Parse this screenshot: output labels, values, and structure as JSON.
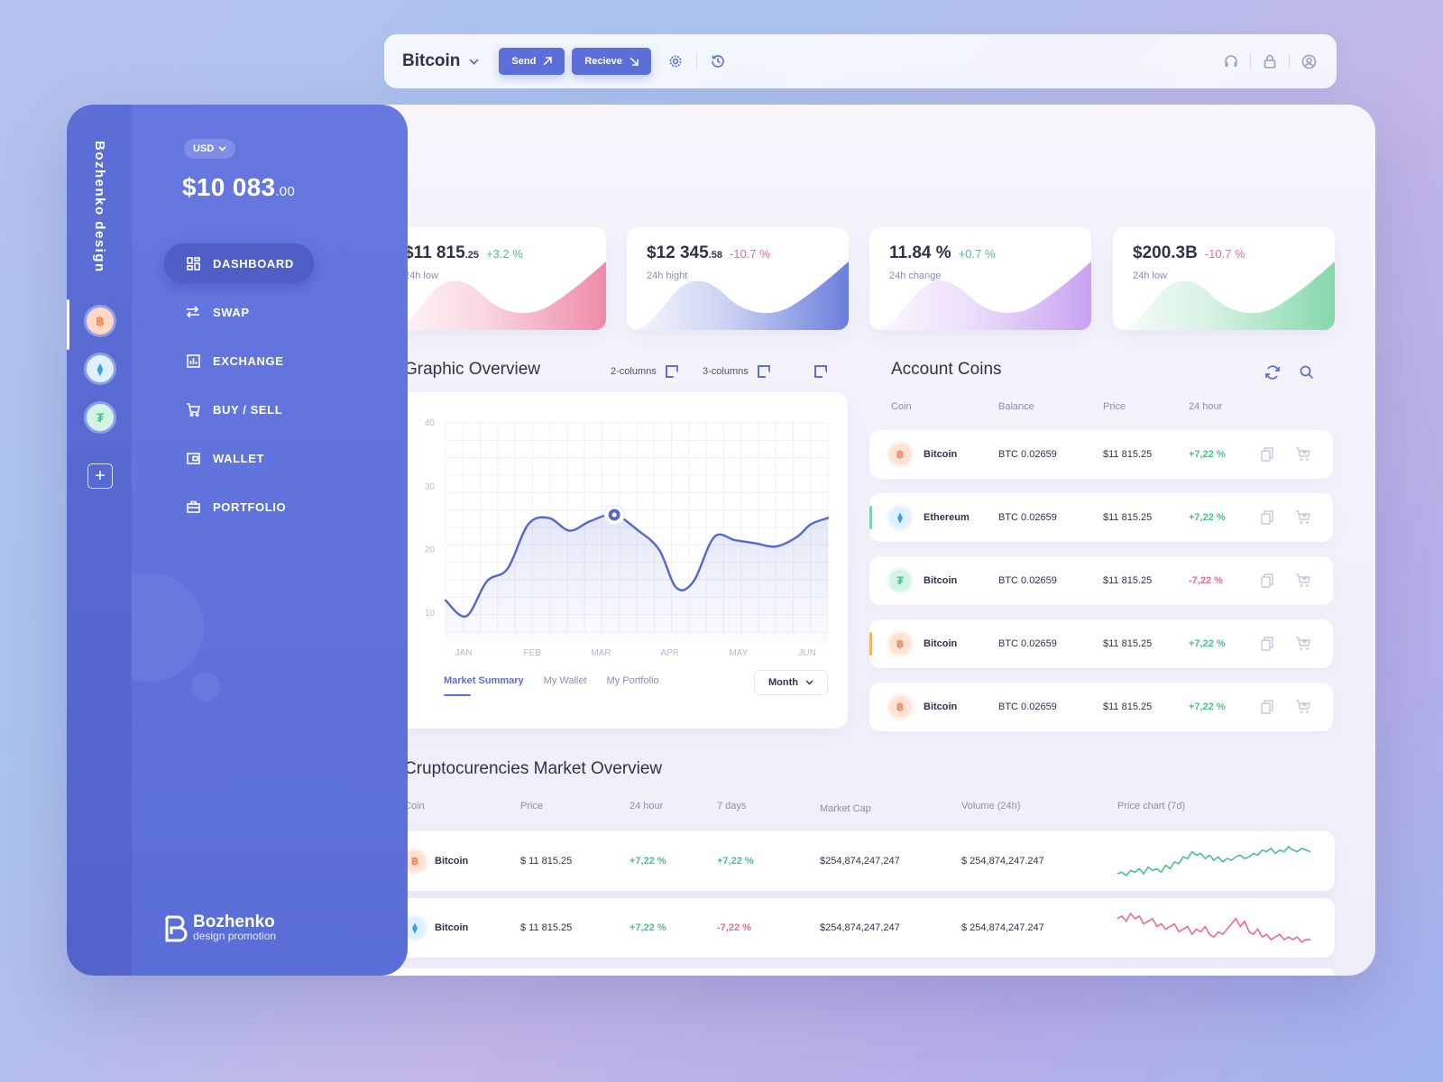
{
  "rail": {
    "brand": "Bozhenko design",
    "coins": [
      {
        "name": "btc-coin-icon",
        "glyph": "฿",
        "bg": "#ffd9c7",
        "fg": "#f48a5c"
      },
      {
        "name": "eth-coin-icon",
        "glyph": "⧫",
        "bg": "#dff1ff",
        "fg": "#3ca0e8"
      },
      {
        "name": "usdt-coin-icon",
        "glyph": "₮",
        "bg": "#d3f3e5",
        "fg": "#3fc48c"
      }
    ],
    "add": "+"
  },
  "sidebar": {
    "currency": "USD",
    "balance_main": "$10 083",
    "balance_cents": ".00",
    "nav": [
      {
        "label": "DASHBOARD",
        "icon": "dashboard-icon",
        "active": true
      },
      {
        "label": "SWAP",
        "icon": "swap-icon",
        "active": false
      },
      {
        "label": "EXCHANGE",
        "icon": "exchange-icon",
        "active": false
      },
      {
        "label": "BUY / SELL",
        "icon": "cart-icon",
        "active": false
      },
      {
        "label": "WALLET",
        "icon": "wallet-icon",
        "active": false
      },
      {
        "label": "PORTFOLIO",
        "icon": "briefcase-icon",
        "active": false
      }
    ],
    "logo_title": "Bozhenko",
    "logo_sub": "design promotion"
  },
  "topbar": {
    "coin": "Bitcoin",
    "send": "Send",
    "receive": "Recieve"
  },
  "stats": [
    {
      "main": "$11 815",
      "cents": ".25",
      "change": "+3.2 %",
      "positive": true,
      "label": "24h low",
      "color": "#ef8aa8"
    },
    {
      "main": "$12 345",
      "cents": ".58",
      "change": "-10.7 %",
      "positive": false,
      "label": "24h hight",
      "color": "#6a7fdc"
    },
    {
      "main": "11.84 %",
      "cents": "",
      "change": "+0.7 %",
      "positive": true,
      "label": "24h change",
      "color": "#c9a2f2"
    },
    {
      "main": "$200.3B",
      "cents": "",
      "change": "-10.7 %",
      "positive": false,
      "label": "24h low",
      "color": "#85d8ac"
    }
  ],
  "graphic": {
    "title": "Graphic Overview",
    "two_col": "2-columns",
    "three_col": "3-columns",
    "tabs": [
      "Market Summary",
      "My Wallet",
      "My Portfolio"
    ],
    "period": "Month"
  },
  "chart_data": {
    "type": "line",
    "categories": [
      "JAN",
      "FEB",
      "MAR",
      "APR",
      "MAY",
      "JUN"
    ],
    "yticks": [
      10,
      20,
      30,
      40
    ],
    "ylim": [
      7,
      40
    ],
    "x": [
      0,
      0.3,
      0.6,
      0.9,
      1.2,
      1.5,
      1.8,
      2.1,
      2.45,
      2.8,
      3.1,
      3.35,
      3.6,
      3.9,
      4.2,
      4.5,
      4.8,
      5.1,
      5.3,
      5.55
    ],
    "values": [
      12,
      9.5,
      15,
      17,
      24,
      25,
      23,
      24.5,
      25.5,
      23,
      20,
      14,
      15,
      22,
      21.5,
      21,
      20.5,
      22,
      24,
      25
    ],
    "highlight_index": 8,
    "color": "#5466d0"
  },
  "account": {
    "title": "Account Coins",
    "headers": [
      "Coin",
      "Balance",
      "Price",
      "24 hour"
    ],
    "rows": [
      {
        "coin": "Bitcoin",
        "icon": "btc",
        "glyph": "฿",
        "balance": "BTC 0.02659",
        "price": "$11 815.25",
        "change": "+7,22 %",
        "positive": true,
        "marker": ""
      },
      {
        "coin": "Ethereum",
        "icon": "eth",
        "glyph": "⧫",
        "balance": "BTC 0.02659",
        "price": "$11 815.25",
        "change": "+7,22 %",
        "positive": true,
        "marker": "#7fd3a7"
      },
      {
        "coin": "Bitcoin",
        "icon": "usdt",
        "glyph": "₮",
        "balance": "BTC 0.02659",
        "price": "$11 815.25",
        "change": "-7,22 %",
        "positive": false,
        "marker": ""
      },
      {
        "coin": "Bitcoin",
        "icon": "btc",
        "glyph": "฿",
        "balance": "BTC 0.02659",
        "price": "$11 815.25",
        "change": "+7,22 %",
        "positive": true,
        "marker": "#f7b267"
      },
      {
        "coin": "Bitcoin",
        "icon": "btc",
        "glyph": "฿",
        "balance": "BTC 0.02659",
        "price": "$11 815.25",
        "change": "+7,22 %",
        "positive": true,
        "marker": ""
      }
    ]
  },
  "market": {
    "title": "Cruptocurencies Market Overview",
    "headers": [
      "Coin",
      "Price",
      "24 hour",
      "7 days",
      "Market Cap",
      "Volume (24h)",
      "Price chart (7d)"
    ],
    "rows": [
      {
        "coin": "Bitcoin",
        "icon": "btc",
        "glyph": "฿",
        "price": "$ 11 815.25",
        "h24": "+7,22 %",
        "h24_pos": true,
        "d7": "+7,22 %",
        "d7_pos": true,
        "cap": "$254,874,247,247",
        "volume": "$ 254,874,247.247",
        "spark_color": "#4cc282",
        "spark": [
          5,
          6,
          4,
          7,
          6,
          8,
          5,
          9,
          7,
          8,
          6,
          10,
          8,
          12,
          11,
          15,
          14,
          18,
          16,
          17,
          14,
          16,
          13,
          15,
          12,
          14,
          13,
          15,
          16,
          14,
          15,
          17,
          16,
          19,
          18,
          20,
          17,
          19,
          18,
          21,
          19,
          18,
          20,
          19,
          18
        ]
      },
      {
        "coin": "Bitcoin",
        "icon": "eth",
        "glyph": "⧫",
        "price": "$ 11 815.25",
        "h24": "+7,22 %",
        "h24_pos": true,
        "d7": "-7,22 %",
        "d7_pos": false,
        "cap": "$254,874,247,247",
        "volume": "$ 254,874,247.247",
        "spark_color": "#ef6b82",
        "spark": [
          18,
          19,
          17,
          20,
          18,
          19,
          16,
          17,
          18,
          15,
          16,
          14,
          15,
          16,
          13,
          14,
          15,
          12,
          14,
          13,
          15,
          12,
          11,
          13,
          12,
          14,
          16,
          18,
          15,
          17,
          13,
          12,
          14,
          11,
          12,
          10,
          11,
          12,
          10,
          11,
          10,
          11,
          9,
          10,
          10
        ]
      }
    ]
  }
}
